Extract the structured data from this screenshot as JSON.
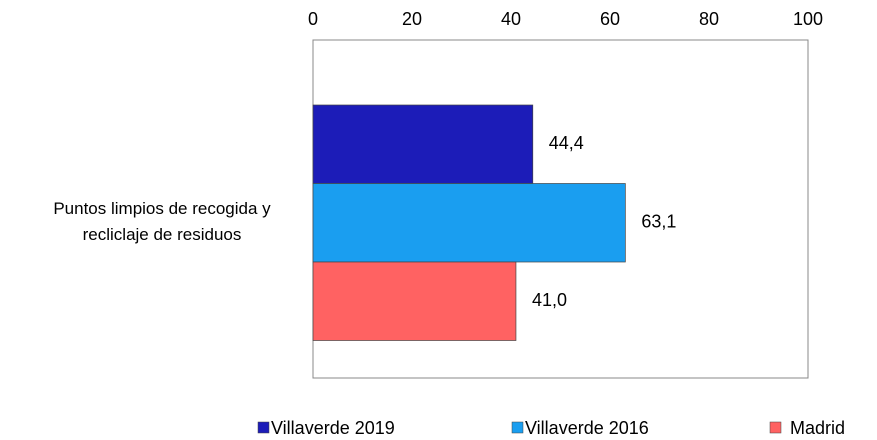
{
  "chart_data": {
    "type": "bar",
    "orientation": "horizontal",
    "categories": [
      "Puntos limpios de recogida y recliclaje de residuos"
    ],
    "series": [
      {
        "name": "Villaverde 2019",
        "color": "#1c1cb8",
        "values": [
          44.4
        ],
        "value_labels": [
          "44,4"
        ]
      },
      {
        "name": "Villaverde 2016",
        "color": "#1a9ef0",
        "values": [
          63.1
        ],
        "value_labels": [
          "63,1"
        ]
      },
      {
        "name": "Madrid",
        "color": "#ff6262",
        "values": [
          41.0
        ],
        "value_labels": [
          "41,0"
        ]
      }
    ],
    "xlim": [
      0,
      100
    ],
    "xticks": [
      0,
      20,
      40,
      60,
      80,
      100
    ],
    "legend": "bottom"
  }
}
